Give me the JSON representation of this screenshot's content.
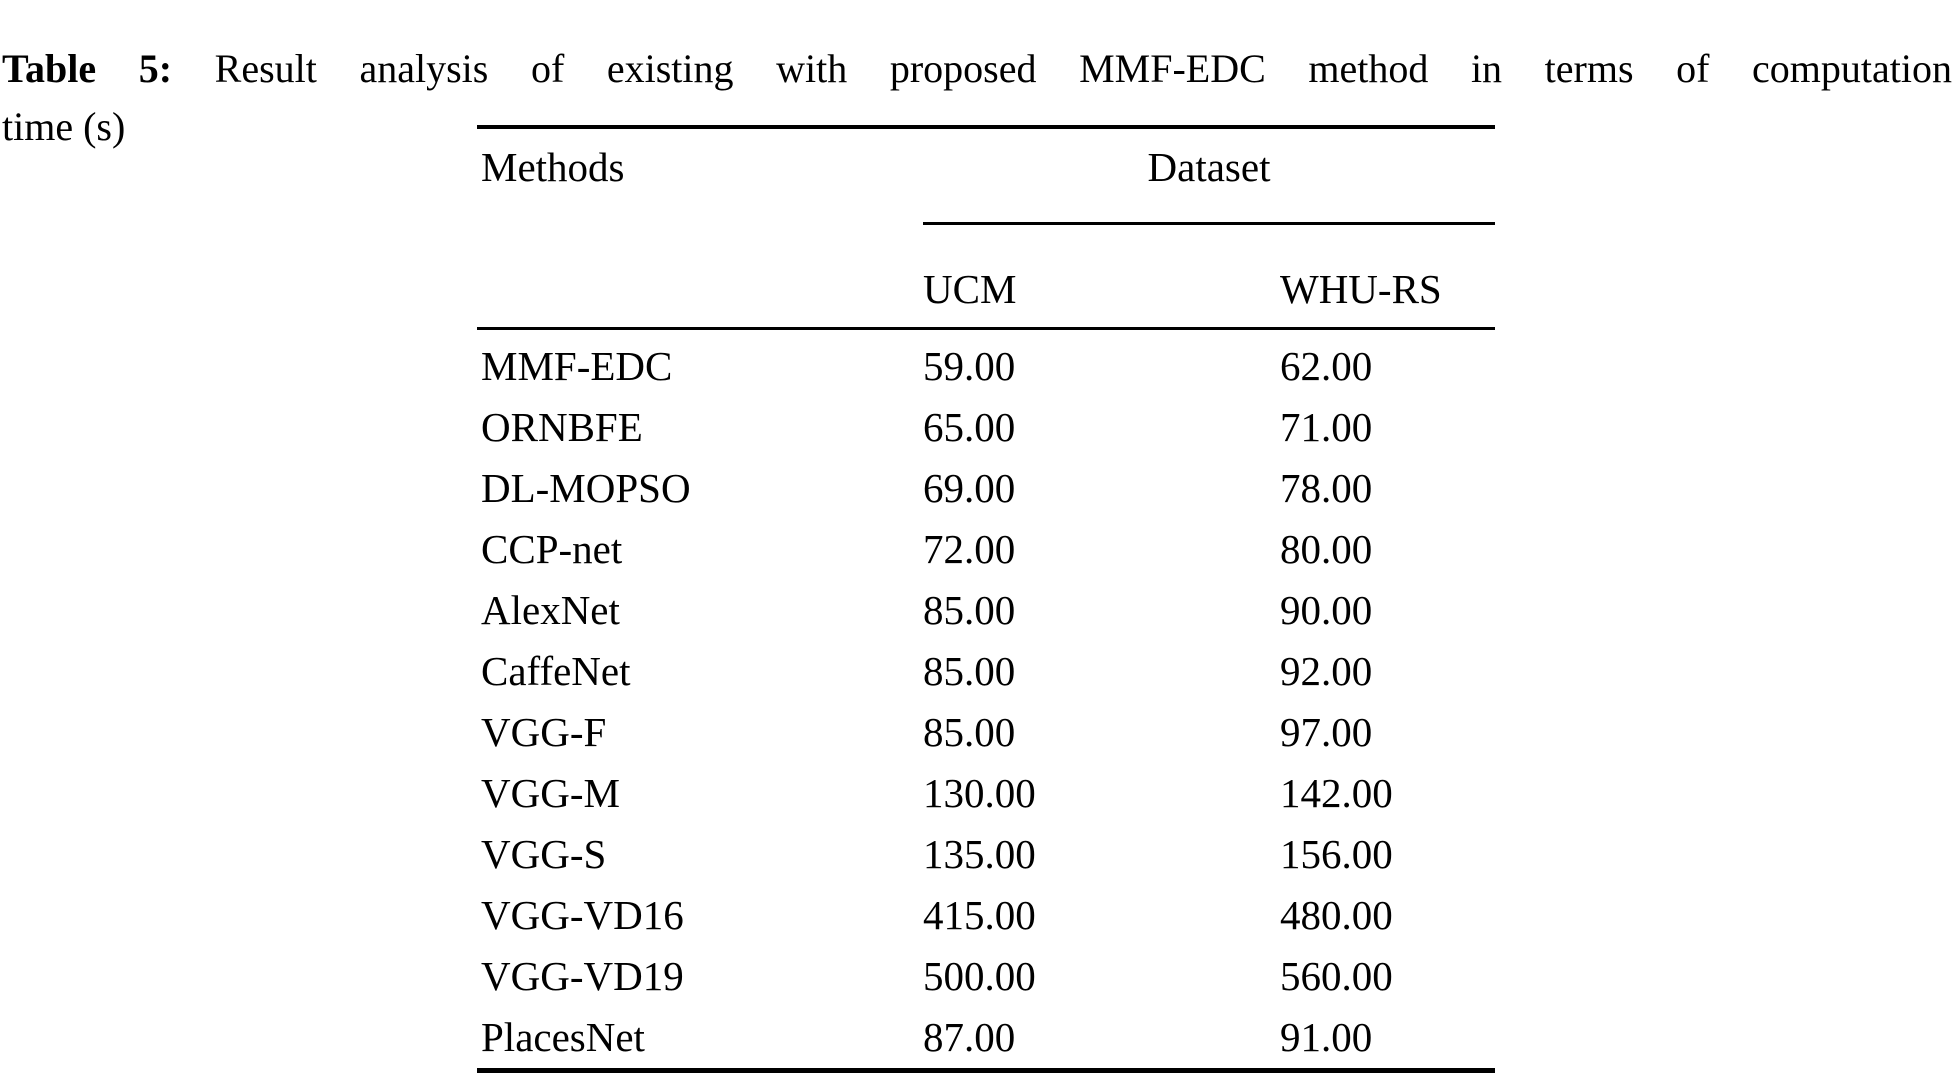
{
  "caption": {
    "label": "Table 5:",
    "text": "Result analysis of existing with proposed MMF-EDC method in terms of computation",
    "line2": "time (s)"
  },
  "table": {
    "headers": {
      "methods": "Methods",
      "dataset_group": "Dataset",
      "ucm": "UCM",
      "whurs": "WHU-RS"
    },
    "rows": [
      {
        "method": "MMF-EDC",
        "ucm": "59.00",
        "whurs": "62.00"
      },
      {
        "method": "ORNBFE",
        "ucm": "65.00",
        "whurs": "71.00"
      },
      {
        "method": "DL-MOPSO",
        "ucm": "69.00",
        "whurs": "78.00"
      },
      {
        "method": "CCP-net",
        "ucm": "72.00",
        "whurs": "80.00"
      },
      {
        "method": "AlexNet",
        "ucm": "85.00",
        "whurs": "90.00"
      },
      {
        "method": "CaffeNet",
        "ucm": "85.00",
        "whurs": "92.00"
      },
      {
        "method": "VGG-F",
        "ucm": "85.00",
        "whurs": "97.00"
      },
      {
        "method": "VGG-M",
        "ucm": "130.00",
        "whurs": "142.00"
      },
      {
        "method": "VGG-S",
        "ucm": "135.00",
        "whurs": "156.00"
      },
      {
        "method": "VGG-VD16",
        "ucm": "415.00",
        "whurs": "480.00"
      },
      {
        "method": "VGG-VD19",
        "ucm": "500.00",
        "whurs": "560.00"
      },
      {
        "method": "PlacesNet",
        "ucm": "87.00",
        "whurs": "91.00"
      }
    ],
    "text_color": "#000000",
    "background_color": "#ffffff"
  }
}
